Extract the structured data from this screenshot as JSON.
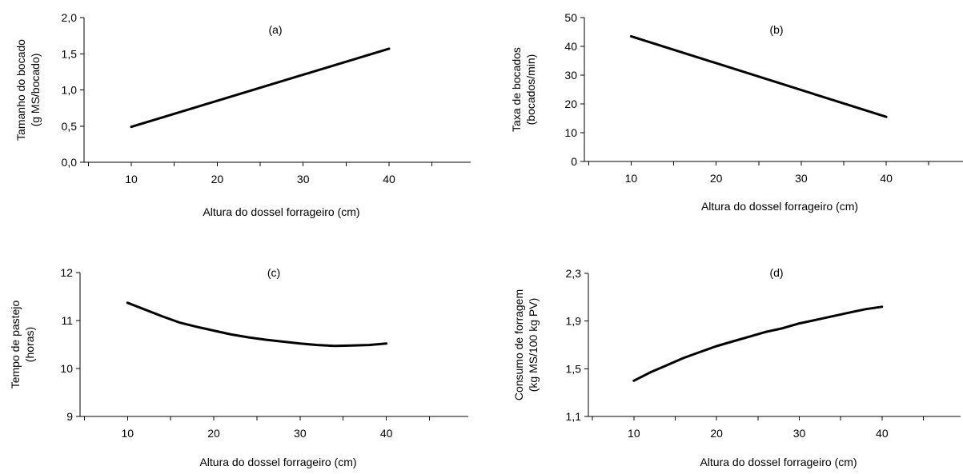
{
  "chart_data": [
    {
      "type": "line",
      "panel_label": "(a)",
      "xlabel": "Altura do dossel forrageiro (cm)",
      "ylabel": [
        "Tamanho do bocado",
        "(g MS/bocado)"
      ],
      "xlim": [
        4.5,
        49.5
      ],
      "ylim": [
        0.0,
        2.0
      ],
      "x_ticks": [
        10,
        20,
        30,
        40
      ],
      "y_ticks": [
        0.0,
        0.5,
        1.0,
        1.5,
        2.0
      ],
      "y_tick_labels": [
        "0,0",
        "0,5",
        "1,0",
        "1,5",
        "2,0"
      ],
      "series": [
        {
          "x": [
            10,
            40
          ],
          "y": [
            0.49,
            1.57
          ]
        }
      ]
    },
    {
      "type": "line",
      "panel_label": "(b)",
      "xlabel": "Altura do dossel forrageiro (cm)",
      "ylabel": [
        "Taxa de bocados",
        "(bocados/min)"
      ],
      "xlim": [
        4.5,
        49.5
      ],
      "ylim": [
        0,
        50
      ],
      "x_ticks": [
        10,
        20,
        30,
        40
      ],
      "y_ticks": [
        0,
        10,
        20,
        30,
        40,
        50
      ],
      "y_tick_labels": [
        "0",
        "10",
        "20",
        "30",
        "40",
        "50"
      ],
      "series": [
        {
          "x": [
            10,
            40
          ],
          "y": [
            43.5,
            15.5
          ]
        }
      ]
    },
    {
      "type": "line",
      "panel_label": "(c)",
      "xlabel": "Altura do dossel forrageiro (cm)",
      "ylabel": [
        "Tempo de pastejo",
        "(horas)"
      ],
      "xlim": [
        4.5,
        49.5
      ],
      "ylim": [
        9,
        12
      ],
      "x_ticks": [
        10,
        20,
        30,
        40
      ],
      "y_ticks": [
        9,
        10,
        11,
        12
      ],
      "y_tick_labels": [
        "9",
        "10",
        "11",
        "12"
      ],
      "series": [
        {
          "x": [
            10,
            12,
            14,
            16,
            18,
            20,
            22,
            24,
            26,
            28,
            30,
            32,
            34,
            36,
            38,
            40
          ],
          "y": [
            11.37,
            11.23,
            11.09,
            10.96,
            10.87,
            10.79,
            10.71,
            10.65,
            10.6,
            10.56,
            10.52,
            10.49,
            10.47,
            10.48,
            10.49,
            10.52
          ]
        }
      ]
    },
    {
      "type": "line",
      "panel_label": "(d)",
      "xlabel": "Altura do dossel forrageiro (cm)",
      "ylabel": [
        "Consumo de forragem",
        "(kg MS/100 kg PV)"
      ],
      "xlim": [
        4.5,
        49.5
      ],
      "ylim": [
        1.1,
        2.3
      ],
      "x_ticks": [
        10,
        20,
        30,
        40
      ],
      "y_ticks": [
        1.1,
        1.5,
        1.9,
        2.3
      ],
      "y_tick_labels": [
        "1,1",
        "1,5",
        "1,9",
        "2,3"
      ],
      "series": [
        {
          "x": [
            10,
            12,
            14,
            16,
            18,
            20,
            22,
            24,
            26,
            28,
            30,
            32,
            34,
            36,
            38,
            40
          ],
          "y": [
            1.4,
            1.47,
            1.53,
            1.59,
            1.64,
            1.69,
            1.73,
            1.77,
            1.81,
            1.84,
            1.88,
            1.91,
            1.94,
            1.97,
            2.0,
            2.02
          ]
        }
      ]
    }
  ]
}
